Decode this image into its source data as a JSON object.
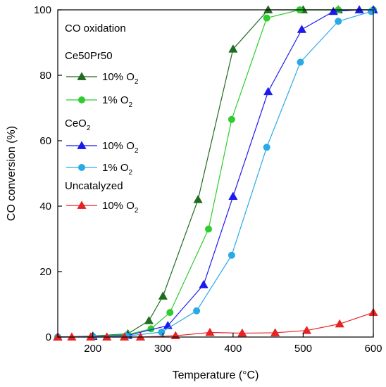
{
  "chart_data": {
    "type": "line",
    "xlabel": "Temperature (°C)",
    "ylabel": "CO conversion (%)",
    "xlim": [
      150,
      600
    ],
    "ylim": [
      0,
      100
    ],
    "xticks": [
      200,
      300,
      400,
      500,
      600
    ],
    "yticks": [
      0,
      20,
      40,
      60,
      80,
      100
    ],
    "grid": false,
    "legend_title": "CO oxidation",
    "legend_groups": [
      {
        "label": "Ce50Pr50",
        "label_sub": ""
      },
      {
        "label": "CeO",
        "label_sub": "2"
      },
      {
        "label": "Uncatalyzed",
        "label_sub": ""
      }
    ],
    "series": [
      {
        "name": "10% O",
        "name_sub": "2",
        "group": 0,
        "color": "#1f6b1f",
        "marker": "triangle",
        "x": [
          150,
          200,
          250,
          280,
          300,
          350,
          400,
          450,
          500,
          550,
          600
        ],
        "y": [
          0,
          0.3,
          1.0,
          5.0,
          12.5,
          42,
          88,
          100,
          100,
          100,
          100
        ]
      },
      {
        "name": "1% O",
        "name_sub": "2",
        "group": 0,
        "color": "#2ecc2e",
        "marker": "circle",
        "x": [
          150,
          200,
          250,
          283,
          310,
          365,
          398,
          448,
          495,
          550,
          600
        ],
        "y": [
          0,
          0.2,
          0.8,
          2.5,
          7.5,
          33,
          66.5,
          97.5,
          100,
          100,
          100
        ]
      },
      {
        "name": "10% O",
        "name_sub": "2",
        "group": 1,
        "color": "#1a1aee",
        "marker": "triangle",
        "x": [
          150,
          200,
          250,
          307,
          358,
          400,
          450,
          498,
          543,
          580,
          600
        ],
        "y": [
          0,
          0.2,
          0.5,
          3.5,
          16,
          43,
          75,
          94,
          99.5,
          100,
          100
        ]
      },
      {
        "name": "1% O",
        "name_sub": "2",
        "group": 1,
        "color": "#29a9e6",
        "marker": "circle",
        "x": [
          150,
          200,
          248,
          298,
          348,
          398,
          448,
          496,
          550,
          597
        ],
        "y": [
          0,
          0.1,
          0.3,
          1.5,
          8,
          25,
          58,
          84,
          96.5,
          99.5
        ]
      },
      {
        "name": "10% O",
        "name_sub": "2",
        "group": 2,
        "color": "#e62222",
        "marker": "triangle",
        "x": [
          150,
          170,
          197,
          220,
          245,
          268,
          318,
          367,
          413,
          460,
          505,
          552,
          600
        ],
        "y": [
          0,
          0,
          0,
          0,
          0,
          0,
          0.4,
          1.4,
          1.2,
          1.3,
          2.0,
          4.0,
          7.5
        ]
      }
    ]
  }
}
